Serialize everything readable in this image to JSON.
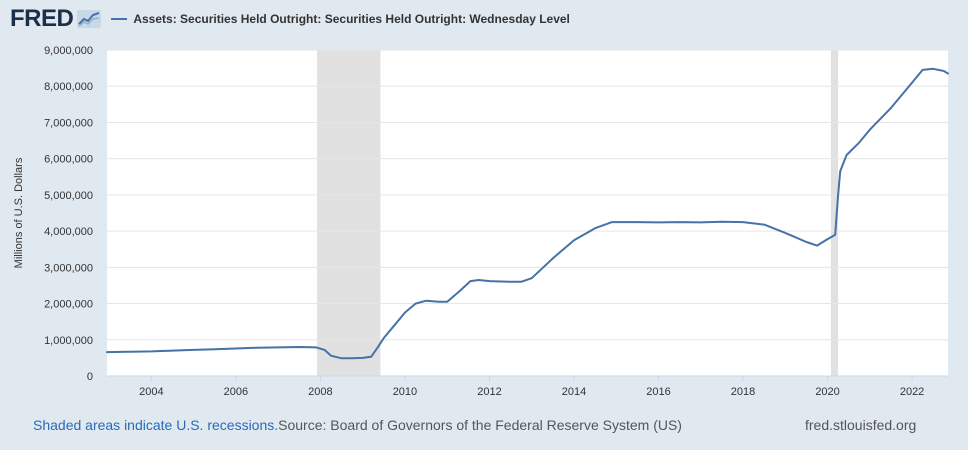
{
  "header": {
    "logo_text": "FRED",
    "legend_label": "Assets: Securities Held Outright: Securities Held Outright: Wednesday Level"
  },
  "colors": {
    "background": "#e1e9f0",
    "plot_background": "#ffffff",
    "series_line": "#4572a7",
    "recession_shade": "#e1e1e1",
    "gridline": "#e6e6e6"
  },
  "icons": {
    "logo_graph": "fred-graph-icon"
  },
  "footer": {
    "recession_note": "Shaded areas indicate U.S. recessions.",
    "source": "Source: Board of Governors of the Federal Reserve System (US)",
    "site": "fred.stlouisfed.org"
  },
  "chart_data": {
    "type": "line",
    "title": "",
    "xlabel": "",
    "ylabel": "Millions of U.S. Dollars",
    "xlim": [
      2002.95,
      2022.85
    ],
    "ylim": [
      0,
      9000000
    ],
    "grid": true,
    "legend_position": "top-left",
    "x_ticks": [
      2004,
      2006,
      2008,
      2010,
      2012,
      2014,
      2016,
      2018,
      2020,
      2022
    ],
    "x_tick_labels": [
      "2004",
      "2006",
      "2008",
      "2010",
      "2012",
      "2014",
      "2016",
      "2018",
      "2020",
      "2022"
    ],
    "y_ticks": [
      0,
      1000000,
      2000000,
      3000000,
      4000000,
      5000000,
      6000000,
      7000000,
      8000000,
      9000000
    ],
    "y_tick_labels": [
      "0",
      "1,000,000",
      "2,000,000",
      "3,000,000",
      "4,000,000",
      "5,000,000",
      "6,000,000",
      "7,000,000",
      "8,000,000",
      "9,000,000"
    ],
    "recessions": [
      [
        2007.92,
        2009.42
      ],
      [
        2020.08,
        2020.25
      ]
    ],
    "series": [
      {
        "name": "Assets: Securities Held Outright: Securities Held Outright: Wednesday Level",
        "x": [
          2002.95,
          2003.5,
          2004.0,
          2004.5,
          2005.0,
          2005.5,
          2006.0,
          2006.5,
          2007.0,
          2007.5,
          2007.9,
          2008.1,
          2008.25,
          2008.5,
          2008.75,
          2009.0,
          2009.2,
          2009.35,
          2009.5,
          2009.75,
          2010.0,
          2010.25,
          2010.5,
          2010.8,
          2011.0,
          2011.3,
          2011.55,
          2011.75,
          2012.0,
          2012.5,
          2012.75,
          2013.0,
          2013.5,
          2014.0,
          2014.5,
          2014.9,
          2015.5,
          2016.0,
          2016.5,
          2017.0,
          2017.5,
          2018.0,
          2018.5,
          2019.0,
          2019.5,
          2019.75,
          2020.0,
          2020.18,
          2020.25,
          2020.3,
          2020.45,
          2020.75,
          2021.0,
          2021.5,
          2022.0,
          2022.25,
          2022.5,
          2022.75,
          2022.85
        ],
        "y": [
          660000,
          670000,
          680000,
          700000,
          720000,
          740000,
          760000,
          780000,
          790000,
          800000,
          790000,
          720000,
          560000,
          490000,
          490000,
          500000,
          530000,
          780000,
          1050000,
          1400000,
          1750000,
          2000000,
          2080000,
          2050000,
          2050000,
          2350000,
          2620000,
          2650000,
          2620000,
          2600000,
          2600000,
          2700000,
          3250000,
          3750000,
          4080000,
          4250000,
          4250000,
          4240000,
          4250000,
          4240000,
          4260000,
          4250000,
          4180000,
          3950000,
          3700000,
          3600000,
          3780000,
          3900000,
          5000000,
          5650000,
          6100000,
          6450000,
          6800000,
          7400000,
          8100000,
          8450000,
          8480000,
          8420000,
          8350000
        ]
      }
    ]
  }
}
